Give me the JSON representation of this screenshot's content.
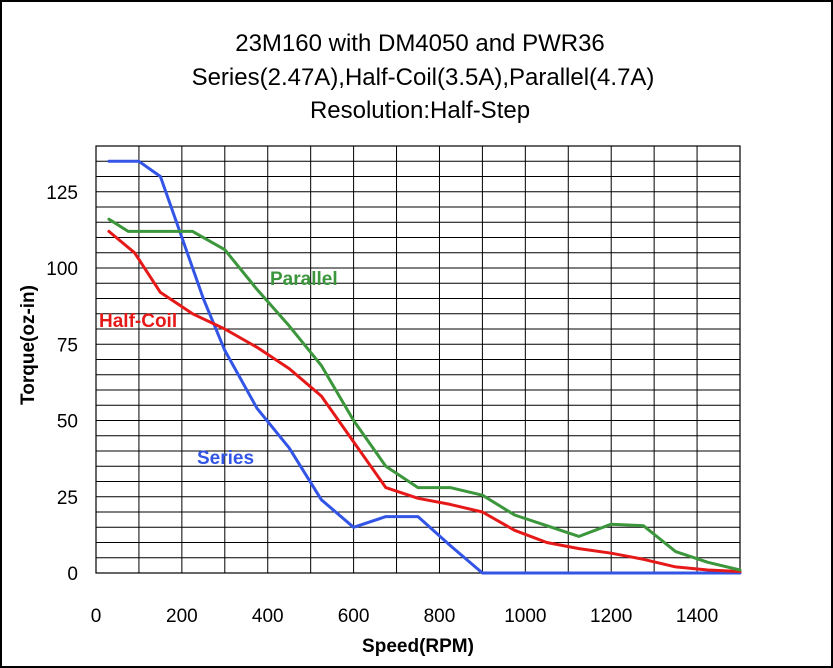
{
  "chart_data": {
    "type": "line",
    "title_lines": [
      "23M160 with DM4050 and PWR36",
      "Series(2.47A),Half-Coil(3.5A),Parallel(4.7A)",
      "Resolution:Half-Step"
    ],
    "xlabel": "Speed(RPM)",
    "ylabel": "Torque(oz-in)",
    "xlim": [
      0,
      1500
    ],
    "ylim": [
      0,
      140
    ],
    "xticks": [
      0,
      200,
      400,
      600,
      800,
      1000,
      1200,
      1400
    ],
    "yticks": [
      0,
      25,
      50,
      75,
      100,
      125
    ],
    "grid": true,
    "legend": "none",
    "series": [
      {
        "name": "Series",
        "color": "#3355e6",
        "x": [
          30,
          60,
          100,
          150,
          200,
          250,
          300,
          375,
          450,
          525,
          600,
          675,
          750,
          825,
          900,
          1500
        ],
        "y": [
          135,
          135,
          135,
          130,
          110,
          90,
          73,
          54,
          41,
          24,
          15,
          18.5,
          18.5,
          9,
          0,
          0
        ]
      },
      {
        "name": "Half-Coil",
        "color": "#e61919",
        "x": [
          30,
          90,
          150,
          225,
          300,
          375,
          450,
          525,
          600,
          675,
          750,
          825,
          900,
          975,
          1050,
          1125,
          1200,
          1275,
          1350,
          1425,
          1500
        ],
        "y": [
          112,
          105,
          92,
          85,
          80,
          74,
          67,
          58,
          43,
          28,
          24.5,
          22.5,
          20,
          14,
          10,
          8,
          6.5,
          4.5,
          2,
          1,
          0.5
        ]
      },
      {
        "name": "Parallel",
        "color": "#3c963c",
        "x": [
          30,
          75,
          150,
          225,
          300,
          375,
          450,
          525,
          600,
          675,
          750,
          825,
          900,
          975,
          1050,
          1125,
          1200,
          1275,
          1350,
          1425,
          1500
        ],
        "y": [
          116,
          112,
          112,
          112,
          106,
          93,
          81,
          68,
          50,
          35,
          28,
          28,
          25.5,
          19,
          15.5,
          12,
          16,
          15.5,
          7,
          3.5,
          1
        ]
      }
    ]
  }
}
